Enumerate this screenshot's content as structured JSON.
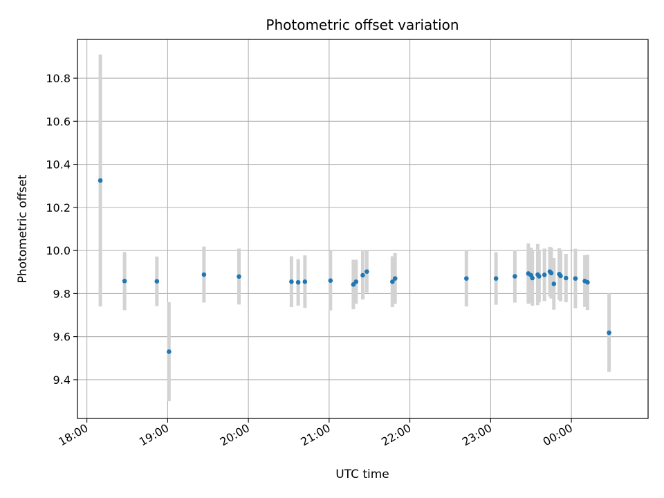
{
  "chart_data": {
    "type": "scatter",
    "title": "Photometric offset variation",
    "xlabel": "UTC time",
    "ylabel": "Photometric offset",
    "x_ticks": [
      "18:00",
      "19:00",
      "20:00",
      "21:00",
      "22:00",
      "23:00",
      "00:00"
    ],
    "y_ticks": [
      "9.4",
      "9.6",
      "9.8",
      "10.0",
      "10.2",
      "10.4",
      "10.6",
      "10.8"
    ],
    "xlim": [
      "17:53",
      "00:57"
    ],
    "ylim": [
      9.22,
      10.98
    ],
    "grid": true,
    "legend": "none",
    "marker_color": "#1f77b4",
    "errorbar_color": "#d3d3d3",
    "points": [
      {
        "t": "18:10",
        "y": 10.325,
        "err": 0.585
      },
      {
        "t": "18:28",
        "y": 9.858,
        "err": 0.135
      },
      {
        "t": "18:52",
        "y": 9.857,
        "err": 0.115
      },
      {
        "t": "19:01",
        "y": 9.53,
        "err": 0.23
      },
      {
        "t": "19:27",
        "y": 9.888,
        "err": 0.13
      },
      {
        "t": "19:53",
        "y": 9.879,
        "err": 0.13
      },
      {
        "t": "20:32",
        "y": 9.855,
        "err": 0.118
      },
      {
        "t": "20:37",
        "y": 9.852,
        "err": 0.108
      },
      {
        "t": "20:42",
        "y": 9.855,
        "err": 0.122
      },
      {
        "t": "21:01",
        "y": 9.86,
        "err": 0.138
      },
      {
        "t": "21:18",
        "y": 9.842,
        "err": 0.115
      },
      {
        "t": "21:20",
        "y": 9.855,
        "err": 0.102
      },
      {
        "t": "21:25",
        "y": 9.885,
        "err": 0.112
      },
      {
        "t": "21:28",
        "y": 9.902,
        "err": 0.098
      },
      {
        "t": "21:47",
        "y": 9.855,
        "err": 0.118
      },
      {
        "t": "21:49",
        "y": 9.87,
        "err": 0.118
      },
      {
        "t": "22:42",
        "y": 9.87,
        "err": 0.13
      },
      {
        "t": "23:04",
        "y": 9.87,
        "err": 0.122
      },
      {
        "t": "23:18",
        "y": 9.88,
        "err": 0.122
      },
      {
        "t": "23:28",
        "y": 9.893,
        "err": 0.14
      },
      {
        "t": "23:30",
        "y": 9.885,
        "err": 0.128
      },
      {
        "t": "23:31",
        "y": 9.872,
        "err": 0.128
      },
      {
        "t": "23:35",
        "y": 9.888,
        "err": 0.142
      },
      {
        "t": "23:36",
        "y": 9.88,
        "err": 0.12
      },
      {
        "t": "23:40",
        "y": 9.887,
        "err": 0.122
      },
      {
        "t": "23:44",
        "y": 9.902,
        "err": 0.115
      },
      {
        "t": "23:45",
        "y": 9.895,
        "err": 0.118
      },
      {
        "t": "23:47",
        "y": 9.845,
        "err": 0.12
      },
      {
        "t": "23:51",
        "y": 9.89,
        "err": 0.12
      },
      {
        "t": "23:52",
        "y": 9.882,
        "err": 0.118
      },
      {
        "t": "23:56",
        "y": 9.872,
        "err": 0.112
      },
      {
        "t": "00:03",
        "y": 9.87,
        "err": 0.138
      },
      {
        "t": "00:10",
        "y": 9.858,
        "err": 0.12
      },
      {
        "t": "00:12",
        "y": 9.852,
        "err": 0.128
      },
      {
        "t": "00:28",
        "y": 9.618,
        "err": 0.182
      }
    ]
  }
}
